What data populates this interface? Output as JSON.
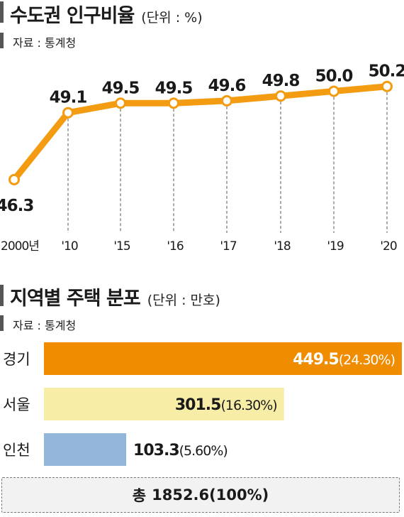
{
  "line_section": {
    "title": "수도권 인구비율",
    "unit": "(단위 : %)",
    "source": "자료 : 통계청"
  },
  "bar_section": {
    "title": "지역별 주택 분포",
    "unit": "(단위 : 만호)",
    "source": "자료 : 통계청"
  },
  "total": {
    "label": "총",
    "value": "1852.6(100%)"
  },
  "colors": {
    "line": "#F39C12",
    "gyeonggi": "#F08C00",
    "seoul": "#F7EDA7",
    "incheon": "#93B5DA"
  },
  "chart_data": [
    {
      "type": "line",
      "title": "수도권 인구비율",
      "ylabel": "(단위 : %)",
      "categories": [
        "2000년",
        "'10",
        "'15",
        "'16",
        "'17",
        "'18",
        "'19",
        "'20"
      ],
      "values": [
        46.3,
        49.1,
        49.5,
        49.5,
        49.6,
        49.8,
        50.0,
        50.2
      ],
      "value_labels": [
        "46.3",
        "49.1",
        "49.5",
        "49.5",
        "49.6",
        "49.8",
        "50.0",
        "50.2"
      ],
      "ylim": [
        46,
        50.4
      ],
      "grid": "dashed vertical guides"
    },
    {
      "type": "bar",
      "orientation": "horizontal",
      "title": "지역별 주택 분포",
      "ylabel": "(단위 : 만호)",
      "categories": [
        "경기",
        "서울",
        "인천"
      ],
      "values": [
        449.5,
        301.5,
        103.3
      ],
      "value_labels": [
        "449.5",
        "301.5",
        "103.3"
      ],
      "pct_labels": [
        "(24.30%)",
        "(16.30%)",
        "(5.60%)"
      ],
      "color_keys": [
        "gyeonggi",
        "seoul",
        "incheon"
      ]
    }
  ]
}
